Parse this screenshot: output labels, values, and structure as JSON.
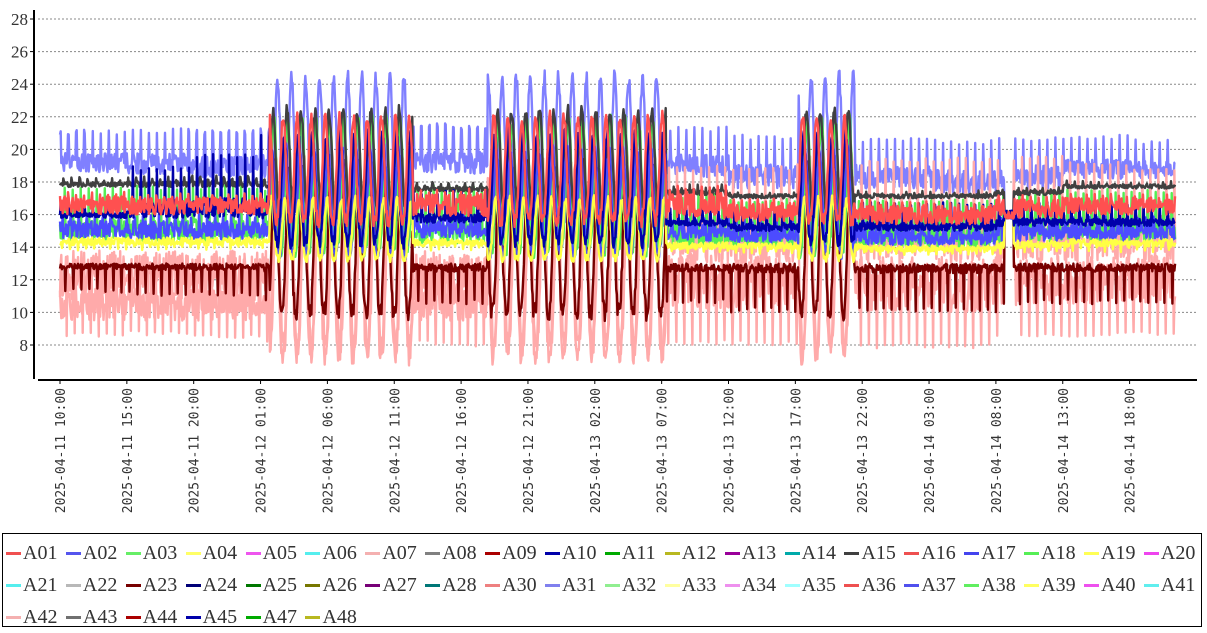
{
  "chart_data": {
    "type": "line",
    "title": "",
    "xlabel": "",
    "ylabel": "",
    "ylim": [
      6.1,
      28.6
    ],
    "x_unit": "hours since 2025-04-11 10:00",
    "xlim": [
      0,
      83.4
    ],
    "grid": true,
    "legend_placement": "bottom",
    "yticks": [
      "8",
      "10",
      "12",
      "14",
      "16",
      "18",
      "20",
      "22",
      "24",
      "26",
      "28"
    ],
    "xticks": [
      {
        "hour": 0,
        "label": "2025-04-11  10:00"
      },
      {
        "hour": 5,
        "label": "2025-04-11  15:00"
      },
      {
        "hour": 10,
        "label": "2025-04-11  20:00"
      },
      {
        "hour": 15,
        "label": "2025-04-12  01:00"
      },
      {
        "hour": 20,
        "label": "2025-04-12  06:00"
      },
      {
        "hour": 25,
        "label": "2025-04-12  11:00"
      },
      {
        "hour": 30,
        "label": "2025-04-12  16:00"
      },
      {
        "hour": 35,
        "label": "2025-04-12  21:00"
      },
      {
        "hour": 40,
        "label": "2025-04-13  02:00"
      },
      {
        "hour": 45,
        "label": "2025-04-13  07:00"
      },
      {
        "hour": 50,
        "label": "2025-04-13  12:00"
      },
      {
        "hour": 55,
        "label": "2025-04-13  17:00"
      },
      {
        "hour": 60,
        "label": "2025-04-13  22:00"
      },
      {
        "hour": 65,
        "label": "2025-04-14  03:00"
      },
      {
        "hour": 70,
        "label": "2025-04-14  08:00"
      },
      {
        "hour": 75,
        "label": "2025-04-14  13:00"
      },
      {
        "hour": 80,
        "label": "2025-04-14  18:00"
      }
    ],
    "segment_hours": 5,
    "swing_periods": [
      [
        15.7,
        26.4
      ],
      [
        32.0,
        45.3
      ],
      [
        55.2,
        59.4
      ]
    ],
    "convergence": {
      "hours": [
        70.6,
        71.3
      ],
      "value": 16
    },
    "series": [
      {
        "name": "A31",
        "color": "#8080ff",
        "spike": "up",
        "fill": 0.45,
        "calm": [
          [
            18.6,
            21.2
          ],
          [
            18.5,
            21.3
          ],
          [
            18.3,
            21.2
          ],
          [
            18.3,
            21.3
          ],
          [
            18.5,
            21.8
          ],
          [
            18.5,
            21.6
          ],
          [
            18.5,
            21.5
          ],
          [
            18.5,
            21.5
          ],
          [
            18.5,
            21.5
          ],
          [
            18.3,
            21.4
          ],
          [
            17.6,
            20.9
          ],
          [
            17.8,
            20.8
          ],
          [
            17.6,
            20.7
          ],
          [
            17.3,
            20.6
          ],
          [
            17.6,
            20.8
          ],
          [
            18.2,
            20.9
          ],
          [
            18.2,
            20.6
          ]
        ],
        "swing": [
          15.8,
          24.4
        ]
      },
      {
        "name": "A42",
        "color": "#ffaaaa",
        "spike": "up",
        "fill": 0.5,
        "calm": [
          [
            9.5,
            13.5
          ],
          [
            9.5,
            13.5
          ],
          [
            9.5,
            13.5
          ],
          [
            9.5,
            13.5
          ],
          [
            9.5,
            13.5
          ],
          [
            9.5,
            13.5
          ],
          [
            9.5,
            13.5
          ],
          [
            9.5,
            13.5
          ],
          [
            9.5,
            13.5
          ],
          [
            13,
            19
          ],
          [
            13,
            19
          ],
          [
            13,
            19.3
          ],
          [
            13,
            19.5
          ],
          [
            13,
            19.5
          ],
          [
            13,
            19.6
          ],
          [
            13,
            19.3
          ],
          [
            13,
            19
          ]
        ],
        "swing": [
          8,
          18
        ]
      },
      {
        "name": "A07",
        "color": "#ffaaaa",
        "spike": "down",
        "fill": 0.6,
        "calm": [
          [
            8.5,
            13.8
          ],
          [
            8.6,
            13.8
          ],
          [
            8.4,
            13.8
          ],
          [
            8,
            13.8
          ],
          [
            8,
            13.8
          ],
          [
            8,
            13.8
          ],
          [
            7.8,
            13.8
          ],
          [
            7.8,
            13.8
          ],
          [
            7.8,
            13.8
          ],
          [
            8,
            13.6
          ],
          [
            8,
            13.5
          ],
          [
            7.8,
            13.5
          ],
          [
            7.8,
            13.5
          ],
          [
            7.8,
            13.4
          ],
          [
            8.4,
            13.5
          ],
          [
            8.5,
            13.6
          ],
          [
            8.6,
            13.6
          ]
        ],
        "swing": [
          7.4,
          19.5
        ]
      },
      {
        "name": "A23",
        "color": "#770000",
        "spike": "down",
        "fill": 0.2,
        "calm": [
          [
            11.2,
            13
          ],
          [
            11,
            13
          ],
          [
            11,
            13
          ],
          [
            10.5,
            13
          ],
          [
            10.5,
            13
          ],
          [
            10.5,
            13
          ],
          [
            10.5,
            13
          ],
          [
            10.5,
            13
          ],
          [
            10.5,
            13
          ],
          [
            10.5,
            13
          ],
          [
            10,
            13
          ],
          [
            10,
            13
          ],
          [
            10,
            13
          ],
          [
            10,
            13
          ],
          [
            10.5,
            13
          ],
          [
            10.5,
            13
          ],
          [
            10.5,
            13
          ]
        ],
        "swing": [
          10,
          19
        ]
      },
      {
        "name": "A03",
        "color": "#55ee55",
        "spike": "up",
        "fill": 0.4,
        "calm": [
          [
            14.3,
            17.8
          ],
          [
            14.3,
            17.8
          ],
          [
            14.3,
            17.8
          ],
          [
            14.3,
            17.6
          ],
          [
            14.3,
            17.6
          ],
          [
            14.2,
            17.8
          ],
          [
            14.2,
            17.8
          ],
          [
            14.2,
            17.8
          ],
          [
            14.2,
            17.8
          ],
          [
            14.1,
            17.3
          ],
          [
            14,
            17
          ],
          [
            14,
            17
          ],
          [
            14,
            17
          ],
          [
            14,
            17
          ],
          [
            14.3,
            17.5
          ],
          [
            14.4,
            17.6
          ],
          [
            14.4,
            17.6
          ]
        ],
        "swing": [
          13.8,
          21.8
        ]
      },
      {
        "name": "A15",
        "color": "#404040",
        "spike": "up",
        "fill": 0.5,
        "calm": [
          [
            17.7,
            18.3
          ],
          [
            17.7,
            18.4
          ],
          [
            17.7,
            18.4
          ],
          [
            17.6,
            18.2
          ],
          [
            17.6,
            18.2
          ],
          [
            17.4,
            18
          ],
          [
            17.4,
            18
          ],
          [
            17.4,
            18
          ],
          [
            17.4,
            18
          ],
          [
            17.2,
            17.9
          ],
          [
            17,
            17.5
          ],
          [
            17,
            17.5
          ],
          [
            17,
            17.5
          ],
          [
            17,
            17.5
          ],
          [
            17.2,
            17.8
          ],
          [
            17.6,
            18.1
          ],
          [
            17.6,
            18.1
          ]
        ],
        "swing": [
          16,
          22.4
        ]
      },
      {
        "name": "A02",
        "color": "#4c4cff",
        "spike": "up",
        "fill": 0.7,
        "calm": [
          [
            14.5,
            16.1
          ],
          [
            14.5,
            16.1
          ],
          [
            14.5,
            16.1
          ],
          [
            14.5,
            16
          ],
          [
            14.5,
            16
          ],
          [
            14.6,
            16
          ],
          [
            14.6,
            16
          ],
          [
            14.6,
            16
          ],
          [
            14.6,
            16
          ],
          [
            14.4,
            15.8
          ],
          [
            14.3,
            15.7
          ],
          [
            14.3,
            15.7
          ],
          [
            14.1,
            15.5
          ],
          [
            14.1,
            15.5
          ],
          [
            14.4,
            15.9
          ],
          [
            14.4,
            15.9
          ],
          [
            14.4,
            15.9
          ]
        ],
        "swing": [
          13.6,
          20
        ]
      },
      {
        "name": "A04",
        "color": "#ffff44",
        "spike": "down",
        "fill": 0.6,
        "calm": [
          [
            13.8,
            14.6
          ],
          [
            13.8,
            14.6
          ],
          [
            13.8,
            14.6
          ],
          [
            13.8,
            14.5
          ],
          [
            13.8,
            14.5
          ],
          [
            13.8,
            14.5
          ],
          [
            13.8,
            14.5
          ],
          [
            13.8,
            14.5
          ],
          [
            13.8,
            14.5
          ],
          [
            13.6,
            14.3
          ],
          [
            13.6,
            14.3
          ],
          [
            13.6,
            14.2
          ],
          [
            13.5,
            14.1
          ],
          [
            13.5,
            14.1
          ],
          [
            13.6,
            14.4
          ],
          [
            13.7,
            14.5
          ],
          [
            13.7,
            14.5
          ]
        ],
        "swing": [
          13.3,
          17
        ]
      },
      {
        "name": "A10",
        "color": "#0000aa",
        "spike": "up",
        "fill": 0.3,
        "calm": [
          [
            15.8,
            16.8
          ],
          [
            15.8,
            19
          ],
          [
            15.8,
            19.8
          ],
          [
            15.5,
            21
          ],
          [
            15.5,
            17
          ],
          [
            15.5,
            17.5
          ],
          [
            15.5,
            17.5
          ],
          [
            15.5,
            17.5
          ],
          [
            15.5,
            17.5
          ],
          [
            15.3,
            16.5
          ],
          [
            15,
            16.5
          ],
          [
            15,
            16.5
          ],
          [
            15,
            16.8
          ],
          [
            15,
            16.8
          ],
          [
            15.3,
            16.8
          ],
          [
            15.3,
            16.8
          ],
          [
            15.3,
            16.8
          ]
        ],
        "swing": [
          14.3,
          21
        ]
      },
      {
        "name": "A01",
        "color": "#ff5050",
        "spike": "up",
        "fill": 0.8,
        "calm": [
          [
            16,
            17.4
          ],
          [
            16,
            17.3
          ],
          [
            16,
            17.3
          ],
          [
            16,
            17.4
          ],
          [
            16,
            17.4
          ],
          [
            15.9,
            17.6
          ],
          [
            15.9,
            17.6
          ],
          [
            15.9,
            17.6
          ],
          [
            15.9,
            17.6
          ],
          [
            15.8,
            17.8
          ],
          [
            15.6,
            17
          ],
          [
            15.6,
            17
          ],
          [
            15.4,
            16.9
          ],
          [
            15.4,
            16.8
          ],
          [
            15.8,
            17.2
          ],
          [
            16,
            17.3
          ],
          [
            16,
            17.3
          ]
        ],
        "swing": [
          15.6,
          22
        ]
      }
    ],
    "legend": [
      {
        "name": "A01",
        "color": "#f05050"
      },
      {
        "name": "A02",
        "color": "#5555ee"
      },
      {
        "name": "A03",
        "color": "#66ee66"
      },
      {
        "name": "A04",
        "color": "#ffff66"
      },
      {
        "name": "A05",
        "color": "#ee55ee"
      },
      {
        "name": "A06",
        "color": "#55eeee"
      },
      {
        "name": "A07",
        "color": "#f4b0b0"
      },
      {
        "name": "A08",
        "color": "#808080"
      },
      {
        "name": "A09",
        "color": "#aa0000"
      },
      {
        "name": "A10",
        "color": "#0000aa"
      },
      {
        "name": "A11",
        "color": "#00aa00"
      },
      {
        "name": "A12",
        "color": "#b8b820"
      },
      {
        "name": "A13",
        "color": "#990099"
      },
      {
        "name": "A14",
        "color": "#00aaaa"
      },
      {
        "name": "A15",
        "color": "#404040"
      },
      {
        "name": "A16",
        "color": "#ee5050"
      },
      {
        "name": "A17",
        "color": "#4444ee"
      },
      {
        "name": "A18",
        "color": "#55ee55"
      },
      {
        "name": "A19",
        "color": "#ffff55"
      },
      {
        "name": "A20",
        "color": "#ee44ee"
      },
      {
        "name": "A21",
        "color": "#55eeee"
      },
      {
        "name": "A22",
        "color": "#b8b8b8"
      },
      {
        "name": "A23",
        "color": "#770000"
      },
      {
        "name": "A24",
        "color": "#000077"
      },
      {
        "name": "A25",
        "color": "#007700"
      },
      {
        "name": "A26",
        "color": "#777700"
      },
      {
        "name": "A27",
        "color": "#770077"
      },
      {
        "name": "A28",
        "color": "#007777"
      },
      {
        "name": "A30",
        "color": "#ee8080"
      },
      {
        "name": "A31",
        "color": "#8080ee"
      },
      {
        "name": "A32",
        "color": "#90ee90"
      },
      {
        "name": "A33",
        "color": "#ffffa0"
      },
      {
        "name": "A34",
        "color": "#ee90ee"
      },
      {
        "name": "A35",
        "color": "#a0ffff"
      },
      {
        "name": "A36",
        "color": "#ee5050"
      },
      {
        "name": "A37",
        "color": "#5050ee"
      },
      {
        "name": "A38",
        "color": "#60ee60"
      },
      {
        "name": "A39",
        "color": "#ffff60"
      },
      {
        "name": "A40",
        "color": "#ee50ee"
      },
      {
        "name": "A41",
        "color": "#60eeee"
      },
      {
        "name": "A42",
        "color": "#f4b0b0"
      },
      {
        "name": "A43",
        "color": "#707070"
      },
      {
        "name": "A44",
        "color": "#aa0000"
      },
      {
        "name": "A45",
        "color": "#0000aa"
      },
      {
        "name": "A47",
        "color": "#00aa00"
      },
      {
        "name": "A48",
        "color": "#b8b820"
      }
    ]
  }
}
